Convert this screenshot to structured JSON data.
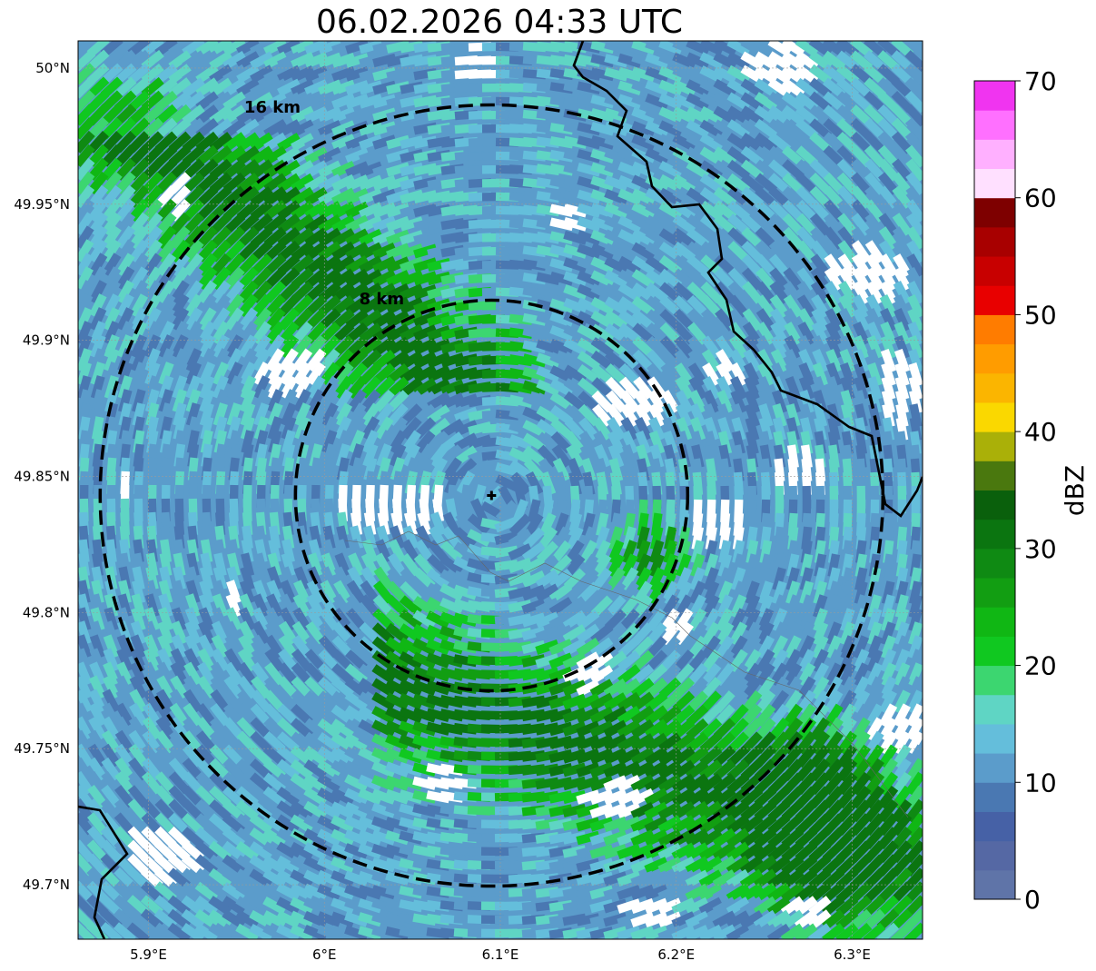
{
  "title": "06.02.2026 04:33 UTC",
  "map": {
    "lat_range": [
      49.68,
      50.01
    ],
    "lon_range": [
      5.86,
      6.34
    ],
    "lat_ticks": [
      "50°N",
      "49.95°N",
      "49.9°N",
      "49.85°N",
      "49.8°N",
      "49.75°N",
      "49.7°N"
    ],
    "lat_tick_values": [
      50.0,
      49.95,
      49.9,
      49.85,
      49.8,
      49.75,
      49.7
    ],
    "lon_ticks": [
      "5.9°E",
      "6°E",
      "6.1°E",
      "6.2°E",
      "6.3°E"
    ],
    "lon_tick_values": [
      5.9,
      6.0,
      6.1,
      6.2,
      6.3
    ],
    "radar_center": {
      "lon": 6.095,
      "lat": 49.843
    },
    "range_rings": [
      {
        "label": "8 km",
        "radius_km": 8
      },
      {
        "label": "16 km",
        "radius_km": 16
      }
    ],
    "grid": true
  },
  "colorbar": {
    "label": "dBZ",
    "min": 0,
    "max": 70,
    "tick_labels": [
      "0",
      "10",
      "20",
      "30",
      "40",
      "50",
      "60",
      "70"
    ],
    "colors": [
      "#5f74a8",
      "#5568a4",
      "#4661a6",
      "#4a78b2",
      "#5b9ccb",
      "#64bedb",
      "#5fd5c4",
      "#3cd670",
      "#10c820",
      "#10b714",
      "#129e12",
      "#0f8a13",
      "#0b7510",
      "#0a600c",
      "#4a780e",
      "#aab008",
      "#fad800",
      "#fbb500",
      "#ff9c00",
      "#ff7c00",
      "#e80000",
      "#c80000",
      "#a80000",
      "#7e0000",
      "#ffe0ff",
      "#ffb0ff",
      "#ff70ff",
      "#f034f0"
    ]
  }
}
